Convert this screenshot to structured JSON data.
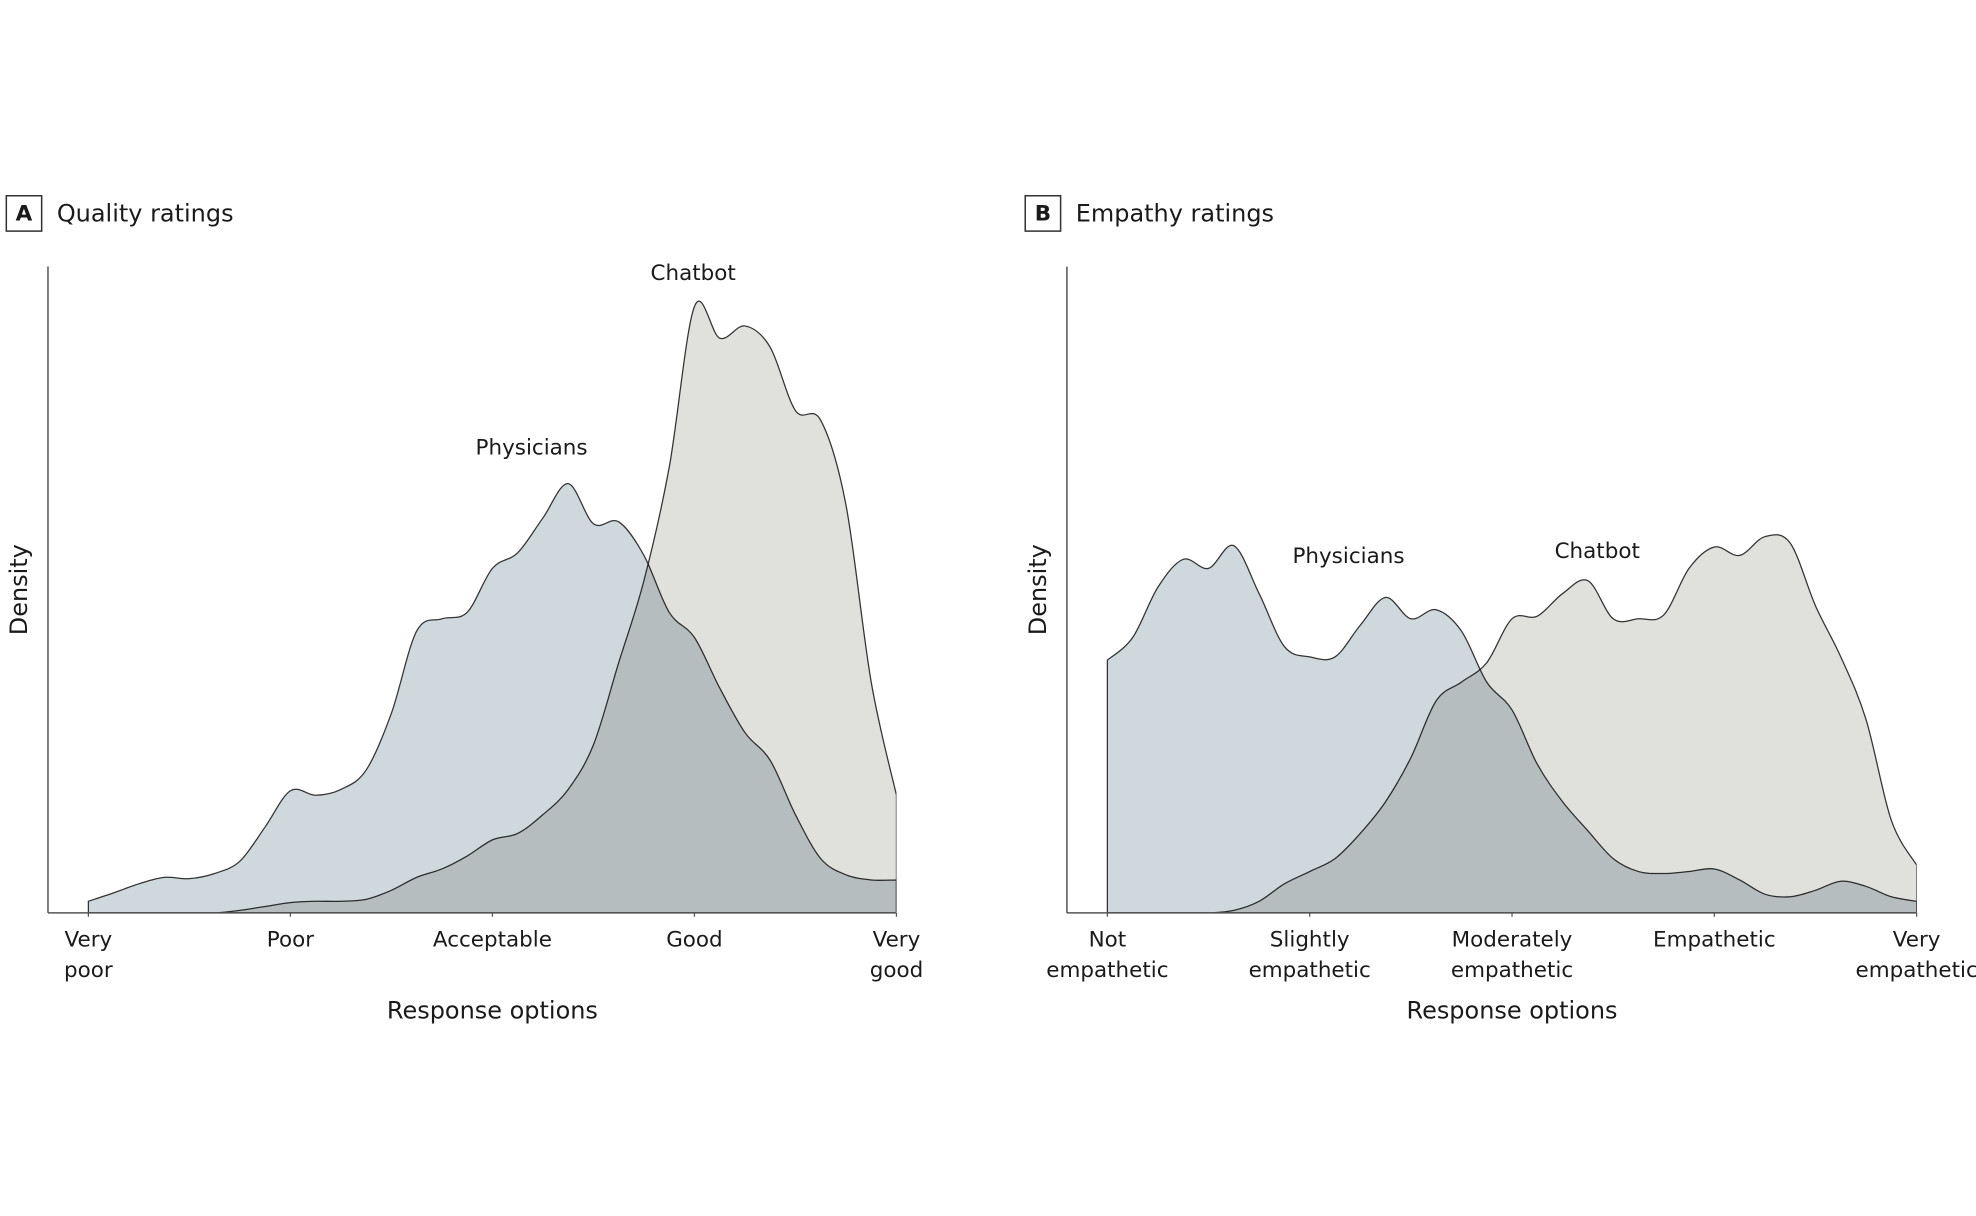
{
  "chart_data": [
    {
      "type": "area",
      "panel": "A",
      "title": "Quality ratings",
      "xlabel": "Response options",
      "ylabel": "Density",
      "xlim": [
        0.8,
        5
      ],
      "ylim": [
        0,
        1
      ],
      "xticks": [
        {
          "value": 1,
          "label": "Very poor"
        },
        {
          "value": 2,
          "label": "Poor"
        },
        {
          "value": 3,
          "label": "Acceptable"
        },
        {
          "value": 4,
          "label": "Good"
        },
        {
          "value": 5,
          "label": "Very good"
        }
      ],
      "x": [
        1,
        1.125,
        1.25,
        1.375,
        1.5,
        1.625,
        1.75,
        1.875,
        2,
        2.125,
        2.25,
        2.375,
        2.5,
        2.625,
        2.75,
        2.875,
        3,
        3.125,
        3.25,
        3.375,
        3.5,
        3.625,
        3.75,
        3.875,
        4,
        4.125,
        4.25,
        4.375,
        4.5,
        4.625,
        4.75,
        4.875,
        5
      ],
      "series": [
        {
          "name": "Physicians",
          "color": "#cfd8dc",
          "values": [
            0.018,
            0.031,
            0.045,
            0.055,
            0.053,
            0.061,
            0.08,
            0.133,
            0.189,
            0.182,
            0.191,
            0.221,
            0.309,
            0.436,
            0.455,
            0.465,
            0.533,
            0.557,
            0.611,
            0.664,
            0.602,
            0.605,
            0.553,
            0.465,
            0.426,
            0.348,
            0.279,
            0.236,
            0.152,
            0.084,
            0.059,
            0.051,
            0.051
          ]
        },
        {
          "name": "Chatbot",
          "color": "#e0e0dd",
          "values": [
            0,
            0,
            0,
            0,
            0,
            0,
            0.004,
            0.01,
            0.016,
            0.018,
            0.018,
            0.021,
            0.035,
            0.055,
            0.068,
            0.088,
            0.113,
            0.123,
            0.152,
            0.191,
            0.26,
            0.387,
            0.514,
            0.689,
            0.938,
            0.889,
            0.908,
            0.875,
            0.777,
            0.762,
            0.631,
            0.357,
            0.182
          ]
        }
      ]
    },
    {
      "type": "area",
      "panel": "B",
      "title": "Empathy ratings",
      "xlabel": "Response options",
      "ylabel": "Density",
      "xlim": [
        0.8,
        5
      ],
      "ylim": [
        0,
        1
      ],
      "xticks": [
        {
          "value": 1,
          "label": "Not empathetic"
        },
        {
          "value": 2,
          "label": "Slightly empathetic"
        },
        {
          "value": 3,
          "label": "Moderately empathetic"
        },
        {
          "value": 4,
          "label": "Empathetic"
        },
        {
          "value": 5,
          "label": "Very empathetic"
        }
      ],
      "x": [
        1,
        1.125,
        1.25,
        1.375,
        1.5,
        1.625,
        1.75,
        1.875,
        2,
        2.125,
        2.25,
        2.375,
        2.5,
        2.625,
        2.75,
        2.875,
        3,
        3.125,
        3.25,
        3.375,
        3.5,
        3.625,
        3.75,
        3.875,
        4,
        4.125,
        4.25,
        4.375,
        4.5,
        4.625,
        4.75,
        4.875,
        5
      ],
      "series": [
        {
          "name": "Physicians",
          "color": "#cfd8dc",
          "values": [
            0.391,
            0.426,
            0.504,
            0.547,
            0.533,
            0.568,
            0.494,
            0.412,
            0.396,
            0.396,
            0.445,
            0.488,
            0.455,
            0.469,
            0.436,
            0.357,
            0.314,
            0.23,
            0.172,
            0.127,
            0.084,
            0.064,
            0.061,
            0.064,
            0.068,
            0.051,
            0.029,
            0.025,
            0.035,
            0.049,
            0.041,
            0.025,
            0.018
          ]
        },
        {
          "name": "Chatbot",
          "color": "#e0e0dd",
          "values": [
            0,
            0,
            0,
            0,
            0,
            0.004,
            0.018,
            0.045,
            0.064,
            0.084,
            0.123,
            0.172,
            0.24,
            0.328,
            0.357,
            0.387,
            0.455,
            0.459,
            0.494,
            0.514,
            0.455,
            0.455,
            0.461,
            0.533,
            0.566,
            0.553,
            0.582,
            0.572,
            0.475,
            0.396,
            0.299,
            0.143,
            0.074
          ]
        }
      ]
    }
  ]
}
